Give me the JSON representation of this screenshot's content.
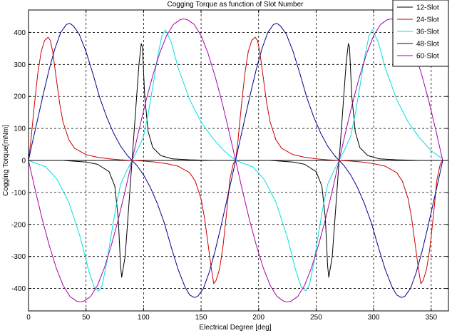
{
  "chart_data": {
    "type": "line",
    "title": "Cogging Torque as function of Slot Number",
    "xlabel": "Electrical Degree [deg]",
    "ylabel": "Cogging Torque[mNm]",
    "xlim": [
      0,
      365
    ],
    "ylim": [
      -470,
      470
    ],
    "xticks": [
      0,
      50,
      100,
      150,
      200,
      250,
      300,
      350
    ],
    "yticks": [
      -400,
      -300,
      -200,
      -100,
      0,
      100,
      200,
      300,
      400
    ],
    "grid": true,
    "legend_position": "top-right",
    "series": [
      {
        "name": "12-Slot",
        "color": "#000000",
        "x": [
          0,
          30,
          50,
          60,
          70,
          75,
          78,
          80,
          81,
          84,
          86,
          88,
          90,
          92,
          94,
          96,
          98,
          99,
          101,
          104,
          108,
          115,
          125,
          140,
          160,
          180,
          210,
          230,
          240,
          250,
          255,
          258,
          260,
          261,
          264,
          266,
          268,
          270,
          272,
          274,
          276,
          278,
          279,
          281,
          284,
          288,
          295,
          305,
          320,
          340,
          355
        ],
        "y": [
          0,
          0,
          -5,
          -12,
          -35,
          -80,
          -180,
          -330,
          -365,
          -300,
          -200,
          -100,
          0,
          100,
          200,
          300,
          365,
          355,
          200,
          90,
          40,
          15,
          5,
          2,
          0,
          0,
          0,
          -5,
          -12,
          -35,
          -80,
          -180,
          -330,
          -365,
          -300,
          -200,
          -100,
          0,
          100,
          200,
          300,
          365,
          355,
          200,
          90,
          40,
          15,
          5,
          2,
          0,
          0
        ]
      },
      {
        "name": "24-Slot",
        "color": "#cc0000",
        "x": [
          0,
          2,
          5,
          8,
          11,
          14,
          17,
          19,
          21,
          24,
          27,
          30,
          35,
          40,
          50,
          60,
          70,
          80,
          90,
          100,
          110,
          120,
          130,
          140,
          145,
          150,
          153,
          156,
          159,
          161,
          163,
          166,
          169,
          172,
          175,
          178,
          180,
          182,
          185,
          188,
          191,
          194,
          197,
          199,
          201,
          204,
          207,
          210,
          215,
          220,
          230,
          240,
          250,
          260,
          270,
          280,
          290,
          300,
          310,
          320,
          325,
          330,
          333,
          336,
          339,
          341,
          343,
          346,
          349,
          352,
          355,
          358,
          360
        ],
        "y": [
          0,
          60,
          170,
          270,
          340,
          375,
          385,
          375,
          340,
          260,
          180,
          120,
          65,
          38,
          18,
          10,
          5,
          2,
          0,
          -2,
          -5,
          -10,
          -18,
          -38,
          -65,
          -120,
          -180,
          -260,
          -340,
          -385,
          -375,
          -340,
          -270,
          -170,
          -60,
          -10,
          0,
          60,
          170,
          270,
          340,
          375,
          385,
          375,
          340,
          260,
          180,
          120,
          65,
          38,
          18,
          10,
          5,
          2,
          0,
          -2,
          -5,
          -10,
          -18,
          -38,
          -65,
          -120,
          -180,
          -260,
          -340,
          -385,
          -375,
          -340,
          -270,
          -170,
          -60,
          -10,
          0
        ]
      },
      {
        "name": "36-Slot",
        "color": "#00e0e0",
        "x": [
          0,
          15,
          25,
          35,
          45,
          52,
          57,
          61,
          64,
          68,
          72,
          76,
          80,
          85,
          90,
          95,
          100,
          104,
          108,
          112,
          116,
          119,
          124,
          130,
          140,
          150,
          160,
          170,
          180,
          195,
          205,
          215,
          225,
          232,
          237,
          241,
          244,
          248,
          252,
          256,
          260,
          265,
          270,
          275,
          280,
          284,
          288,
          292,
          296,
          299,
          304,
          310,
          320,
          330,
          340,
          350,
          360
        ],
        "y": [
          0,
          -20,
          -60,
          -130,
          -240,
          -340,
          -395,
          -408,
          -390,
          -320,
          -230,
          -145,
          -75,
          -35,
          0,
          35,
          75,
          145,
          230,
          320,
          390,
          408,
          370,
          290,
          190,
          120,
          70,
          30,
          0,
          -20,
          -60,
          -130,
          -240,
          -340,
          -395,
          -408,
          -390,
          -320,
          -230,
          -145,
          -75,
          -35,
          0,
          35,
          75,
          145,
          230,
          320,
          390,
          408,
          370,
          290,
          190,
          120,
          70,
          30,
          5
        ]
      },
      {
        "name": "48-Slot",
        "color": "#00008b",
        "x": [
          0,
          3,
          8,
          13,
          18,
          23,
          28,
          33,
          36,
          39,
          44,
          50,
          56,
          62,
          68,
          74,
          80,
          86,
          90,
          94,
          100,
          106,
          112,
          118,
          124,
          130,
          136,
          140,
          144,
          147,
          152,
          157,
          162,
          167,
          172,
          177,
          180,
          183,
          188,
          193,
          198,
          203,
          208,
          213,
          216,
          219,
          224,
          230,
          236,
          242,
          248,
          254,
          260,
          266,
          270,
          274,
          280,
          286,
          292,
          298,
          304,
          310,
          316,
          320,
          324,
          327,
          332,
          337,
          342,
          347,
          352,
          357,
          360
        ],
        "y": [
          0,
          50,
          130,
          210,
          285,
          350,
          400,
          425,
          428,
          420,
          395,
          340,
          270,
          195,
          135,
          85,
          45,
          15,
          0,
          -15,
          -45,
          -85,
          -135,
          -195,
          -270,
          -340,
          -395,
          -420,
          -428,
          -425,
          -400,
          -350,
          -285,
          -210,
          -130,
          -50,
          0,
          50,
          130,
          210,
          285,
          350,
          400,
          425,
          428,
          420,
          395,
          340,
          270,
          195,
          135,
          85,
          45,
          15,
          0,
          -15,
          -45,
          -85,
          -135,
          -195,
          -270,
          -340,
          -395,
          -420,
          -428,
          -425,
          -400,
          -350,
          -285,
          -210,
          -130,
          -50,
          0
        ]
      },
      {
        "name": "60-Slot",
        "color": "#aa00aa",
        "x": [
          0,
          6,
          12,
          18,
          24,
          30,
          36,
          42,
          45,
          48,
          54,
          60,
          66,
          72,
          78,
          84,
          90,
          96,
          102,
          108,
          114,
          120,
          126,
          132,
          135,
          138,
          144,
          150,
          156,
          162,
          168,
          174,
          180,
          186,
          192,
          198,
          204,
          210,
          216,
          222,
          225,
          228,
          234,
          240,
          246,
          252,
          258,
          264,
          270,
          276,
          282,
          288,
          294,
          300,
          306,
          312,
          315,
          318,
          324,
          330,
          336,
          342,
          348,
          354,
          360
        ],
        "y": [
          0,
          -95,
          -185,
          -265,
          -335,
          -390,
          -425,
          -440,
          -442,
          -440,
          -425,
          -390,
          -335,
          -265,
          -185,
          -95,
          0,
          95,
          185,
          265,
          335,
          390,
          425,
          440,
          442,
          440,
          425,
          390,
          335,
          265,
          185,
          95,
          0,
          -95,
          -185,
          -265,
          -335,
          -390,
          -425,
          -440,
          -442,
          -440,
          -425,
          -390,
          -335,
          -265,
          -185,
          -95,
          0,
          95,
          185,
          265,
          335,
          390,
          425,
          440,
          442,
          440,
          425,
          390,
          335,
          265,
          185,
          95,
          0
        ]
      }
    ]
  }
}
